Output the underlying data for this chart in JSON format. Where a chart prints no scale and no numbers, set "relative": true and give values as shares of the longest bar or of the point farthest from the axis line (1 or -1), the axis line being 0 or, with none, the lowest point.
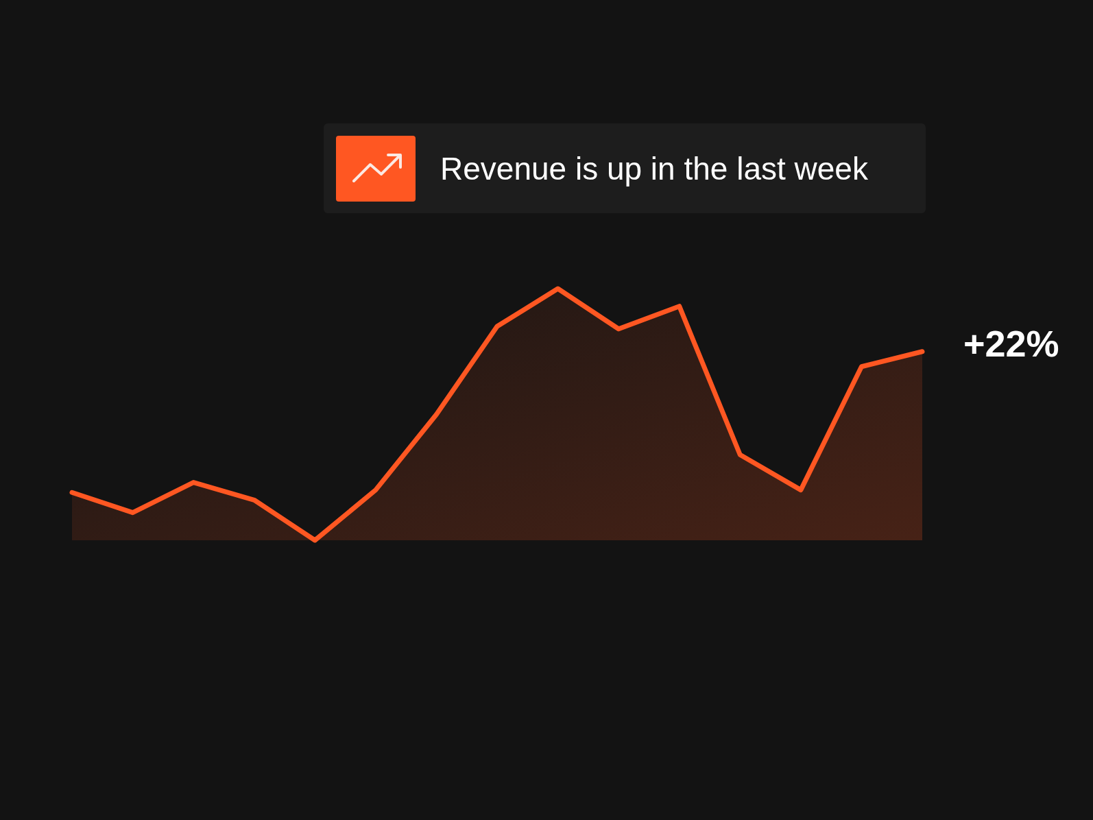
{
  "chart_data": {
    "type": "area",
    "title": "Revenue is up in the last week",
    "relative": true,
    "categories": [
      null,
      null,
      null,
      null,
      null,
      null,
      null,
      null,
      null,
      null,
      null,
      null,
      null,
      null,
      null
    ],
    "series": [
      {
        "color": "#ff5722",
        "values": [
          0.19,
          0.11,
          0.23,
          0.16,
          0,
          0.2,
          0.5,
          0.85,
          1,
          0.84,
          0.93,
          0.34,
          0.2,
          0.69,
          0.75
        ]
      }
    ],
    "annotations": [
      "+22%"
    ]
  }
}
